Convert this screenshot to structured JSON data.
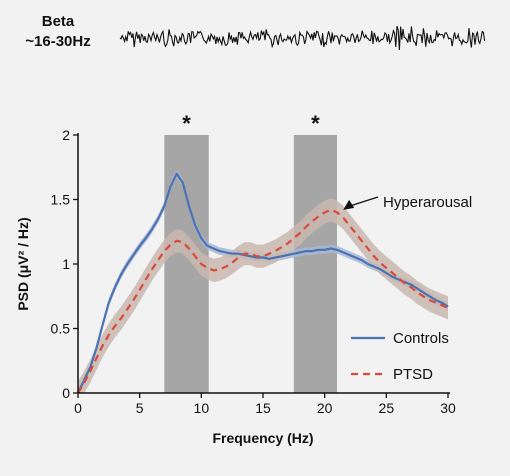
{
  "header": {
    "band_line1": "Beta",
    "band_line2": "~16-30Hz"
  },
  "colors": {
    "background": "#f2f2f2",
    "controls": "#4a72b5",
    "controls_shade": "#a9b8d2",
    "ptsd": "#d94a3a",
    "ptsd_shade": "#c9b8b0",
    "significance": "#a6a6a6"
  },
  "chart_data": {
    "type": "line",
    "xlabel": "Frequency (Hz)",
    "ylabel": "PSD (μV² / Hz)",
    "xlim": [
      0,
      30
    ],
    "ylim": [
      0,
      2
    ],
    "xticks": [
      "0",
      "5",
      "10",
      "15",
      "20",
      "25",
      "30"
    ],
    "yticks": [
      "0",
      "0.5",
      "1",
      "1.5",
      "2"
    ],
    "grid": false,
    "legend_placement": "bottom-right",
    "significant_bands": [
      {
        "from": 7.0,
        "to": 10.6,
        "label": "*"
      },
      {
        "from": 17.5,
        "to": 21.0,
        "label": "*"
      }
    ],
    "annotation": {
      "text": "Hyperarousal",
      "x": 21.5,
      "y": 1.42
    },
    "series": [
      {
        "name": "Controls",
        "style": "solid",
        "x": [
          0,
          0.5,
          1,
          1.5,
          2,
          2.5,
          3,
          3.5,
          4,
          4.5,
          5,
          5.5,
          6,
          6.5,
          7,
          7.5,
          8,
          8.5,
          9,
          9.5,
          10,
          10.5,
          11,
          11.5,
          12,
          12.5,
          13,
          13.5,
          14,
          14.5,
          15,
          15.5,
          16,
          16.5,
          17,
          17.5,
          18,
          18.5,
          19,
          19.5,
          20,
          20.5,
          21,
          21.5,
          22,
          22.5,
          23,
          23.5,
          24,
          24.5,
          25,
          25.5,
          26,
          26.5,
          27,
          27.5,
          28,
          28.5,
          29,
          29.5,
          30
        ],
        "values": [
          0.0,
          0.1,
          0.2,
          0.35,
          0.53,
          0.7,
          0.82,
          0.92,
          1.0,
          1.07,
          1.14,
          1.2,
          1.27,
          1.35,
          1.45,
          1.6,
          1.7,
          1.63,
          1.45,
          1.3,
          1.2,
          1.14,
          1.12,
          1.1,
          1.09,
          1.08,
          1.08,
          1.07,
          1.06,
          1.05,
          1.05,
          1.04,
          1.05,
          1.06,
          1.07,
          1.08,
          1.09,
          1.1,
          1.1,
          1.11,
          1.11,
          1.12,
          1.11,
          1.09,
          1.07,
          1.05,
          1.03,
          1.0,
          0.98,
          0.96,
          0.93,
          0.9,
          0.88,
          0.86,
          0.84,
          0.81,
          0.78,
          0.75,
          0.72,
          0.7,
          0.67
        ],
        "band": 0.03
      },
      {
        "name": "PTSD",
        "style": "dashed",
        "x": [
          0,
          0.5,
          1,
          1.5,
          2,
          2.5,
          3,
          3.5,
          4,
          4.5,
          5,
          5.5,
          6,
          6.5,
          7,
          7.5,
          8,
          8.5,
          9,
          9.5,
          10,
          10.5,
          11,
          11.5,
          12,
          12.5,
          13,
          13.5,
          14,
          14.5,
          15,
          15.5,
          16,
          16.5,
          17,
          17.5,
          18,
          18.5,
          19,
          19.5,
          20,
          20.5,
          21,
          21.5,
          22,
          22.5,
          23,
          23.5,
          24,
          24.5,
          25,
          25.5,
          26,
          26.5,
          27,
          27.5,
          28,
          28.5,
          29,
          29.5,
          30
        ],
        "values": [
          0.0,
          0.08,
          0.17,
          0.27,
          0.37,
          0.45,
          0.52,
          0.58,
          0.65,
          0.72,
          0.8,
          0.88,
          0.96,
          1.03,
          1.1,
          1.15,
          1.18,
          1.17,
          1.12,
          1.06,
          1.0,
          0.97,
          0.95,
          0.96,
          0.98,
          1.01,
          1.05,
          1.08,
          1.08,
          1.06,
          1.06,
          1.08,
          1.1,
          1.13,
          1.16,
          1.2,
          1.24,
          1.29,
          1.33,
          1.37,
          1.4,
          1.42,
          1.4,
          1.36,
          1.3,
          1.24,
          1.18,
          1.12,
          1.06,
          1.01,
          0.97,
          0.93,
          0.89,
          0.85,
          0.82,
          0.78,
          0.75,
          0.72,
          0.7,
          0.68,
          0.66
        ],
        "band": 0.09
      }
    ]
  }
}
